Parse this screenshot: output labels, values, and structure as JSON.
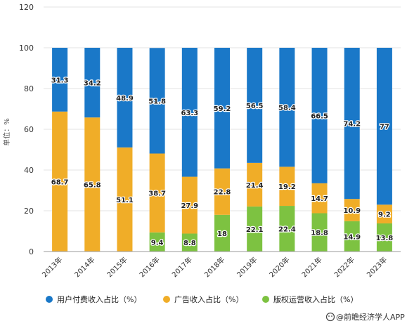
{
  "chart_data": {
    "type": "bar",
    "stacked": true,
    "categories": [
      "2013年",
      "2014年",
      "2015年",
      "2016年",
      "2017年",
      "2018年",
      "2019年",
      "2020年",
      "2021年",
      "2022年",
      "2023年"
    ],
    "series": [
      {
        "name": "版权运营收入占比（%）",
        "color": "#7dc241",
        "values": [
          null,
          null,
          null,
          9.4,
          8.8,
          18,
          22.1,
          22.4,
          18.8,
          14.9,
          13.8
        ],
        "labels": [
          "",
          "",
          "",
          "9.4",
          "8.8",
          "18",
          "22.1",
          "22.4",
          "18.8",
          "14.9",
          "13.8"
        ]
      },
      {
        "name": "广告收入占比（%）",
        "color": "#f0ad28",
        "values": [
          68.7,
          65.8,
          51.1,
          38.7,
          27.9,
          22.8,
          21.4,
          19.2,
          14.7,
          10.9,
          9.2
        ],
        "labels": [
          "68.7",
          "65.8",
          "51.1",
          "38.7",
          "27.9",
          "22.8",
          "21.4",
          "19.2",
          "14.7",
          "10.9",
          "9.2"
        ]
      },
      {
        "name": "用户付费收入占比（%）",
        "color": "#1a78c8",
        "values": [
          31.3,
          34.2,
          48.9,
          51.8,
          63.3,
          59.2,
          56.5,
          58.4,
          66.5,
          74.2,
          77
        ],
        "labels": [
          "31.3",
          "34.2",
          "48.9",
          "51.8",
          "63.3",
          "59.2",
          "56.5",
          "58.4",
          "66.5",
          "74.2",
          "77"
        ]
      }
    ],
    "legend_order": [
      2,
      1,
      0
    ],
    "ylabel": "单位：%",
    "ylim": [
      0,
      120
    ],
    "yticks": [
      0,
      20,
      40,
      60,
      80,
      100,
      120
    ],
    "legend_position": "bottom",
    "grid": true
  },
  "footer": {
    "source_icon": "wechat-icon",
    "source_text": "@前瞻经济学人APP"
  },
  "colors": {
    "grid": "#e3e3e3",
    "axis": "#999999"
  }
}
